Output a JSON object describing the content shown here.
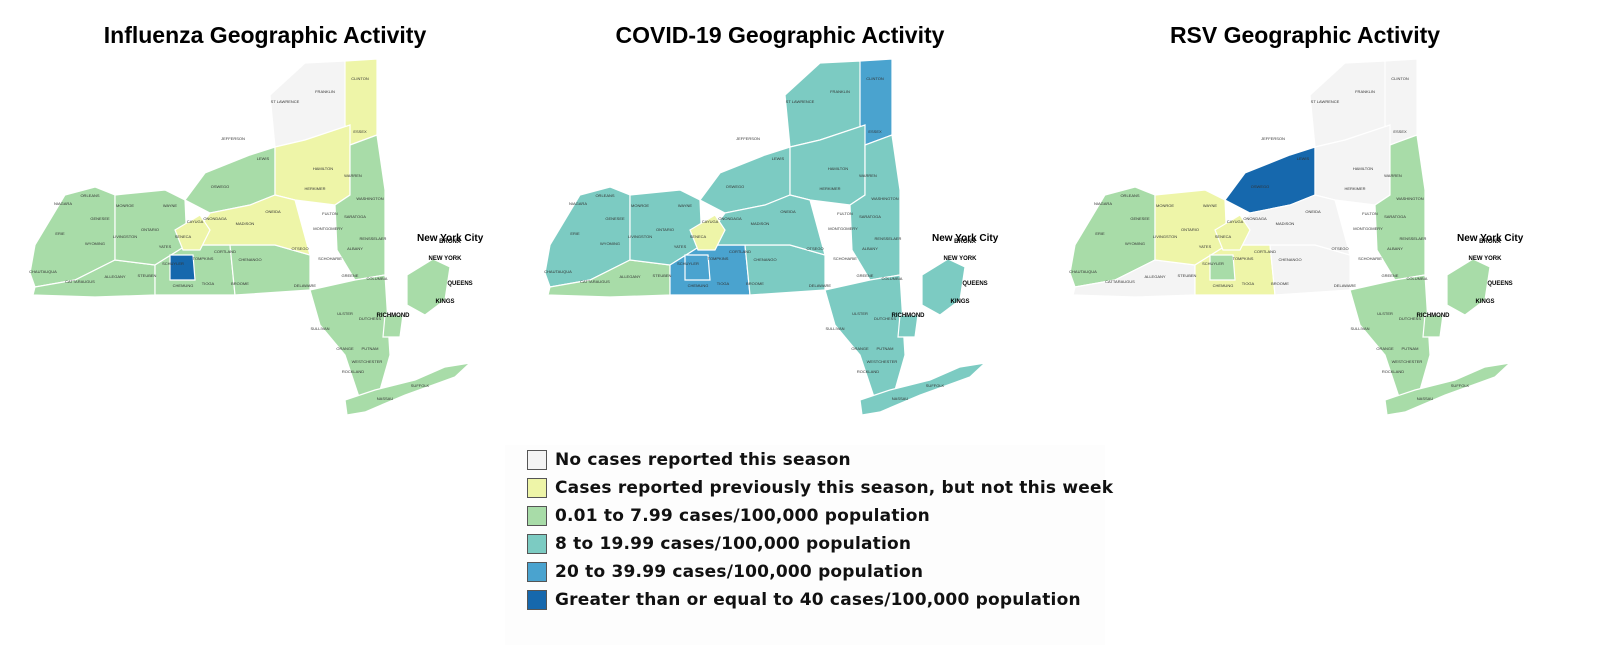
{
  "maps": [
    {
      "title": "Influenza Geographic Activity",
      "nyc_label": "New York City",
      "fills": {
        "west": "green",
        "southwest": "green",
        "center_west": "green",
        "center_south": "green",
        "north_west": "green",
        "north": "light",
        "north_east": "yellow",
        "adirondack": "yellow",
        "capital": "green",
        "hudson": "green",
        "southern_tier": "green",
        "central": "yellow",
        "finger_lakes": "yellow",
        "hotspot": "dark",
        "long_island": "green",
        "nyc": "green"
      }
    },
    {
      "title": "COVID-19 Geographic Activity",
      "nyc_label": "New York City",
      "fills": {
        "west": "teal",
        "southwest": "green",
        "center_west": "teal",
        "center_south": "blue",
        "north_west": "teal",
        "north": "teal",
        "north_east": "blue",
        "adirondack": "teal",
        "capital": "teal",
        "hudson": "teal",
        "southern_tier": "teal",
        "central": "teal",
        "finger_lakes": "yellow",
        "hotspot": "blue",
        "long_island": "teal",
        "nyc": "teal"
      }
    },
    {
      "title": "RSV Geographic Activity",
      "nyc_label": "New York City",
      "fills": {
        "west": "green",
        "southwest": "light",
        "center_west": "yellow",
        "center_south": "yellow",
        "north_west": "dark",
        "north": "light",
        "north_east": "light",
        "adirondack": "light",
        "capital": "green",
        "hudson": "green",
        "southern_tier": "light",
        "central": "light",
        "finger_lakes": "yellow",
        "hotspot": "green",
        "long_island": "green",
        "nyc": "green"
      }
    }
  ],
  "boroughs": [
    "BRONX",
    "NEW YORK",
    "QUEENS",
    "KINGS",
    "RICHMOND"
  ],
  "legend": [
    {
      "key": "light",
      "color": "#f4f4f4",
      "label": "No cases reported this season"
    },
    {
      "key": "yellow",
      "color": "#eef5a8",
      "label": "Cases reported previously this season, but not this week"
    },
    {
      "key": "green",
      "color": "#a8dca8",
      "label": "0.01 to 7.99 cases/100,000 population"
    },
    {
      "key": "teal",
      "color": "#7ccbc2",
      "label": "8 to 19.99 cases/100,000 population"
    },
    {
      "key": "blue",
      "color": "#4aa3cf",
      "label": "20 to 39.99 cases/100,000 population"
    },
    {
      "key": "dark",
      "color": "#1668ad",
      "label": "Greater than or equal to 40 cases/100,000 population"
    }
  ]
}
